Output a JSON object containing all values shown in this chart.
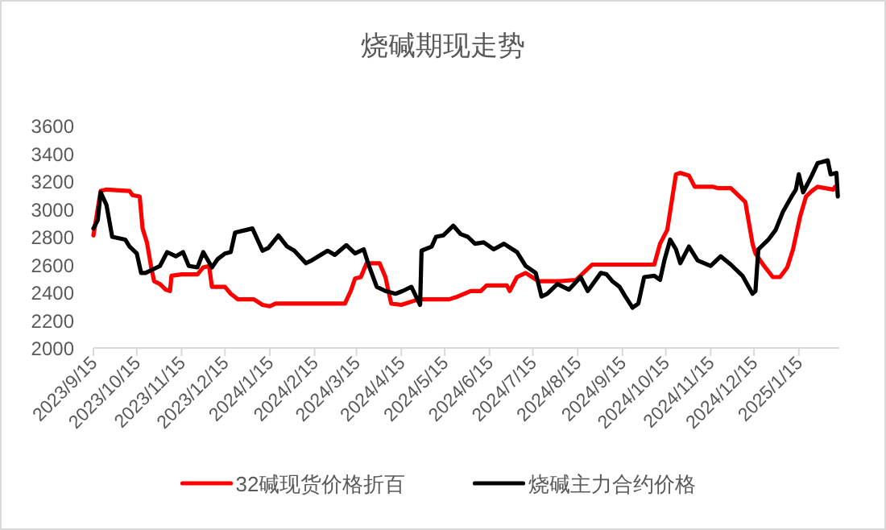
{
  "chart_data": {
    "type": "line",
    "title": "烧碱期现走势",
    "legend": "bottom",
    "xlim": [
      "2023-09-15",
      "2025-02-12"
    ],
    "xticks": [
      {
        "value": "2023-09-15",
        "label": "2023/9/15"
      },
      {
        "value": "2023-10-15",
        "label": "2023/10/15"
      },
      {
        "value": "2023-11-15",
        "label": "2023/11/15"
      },
      {
        "value": "2023-12-15",
        "label": "2023/12/15"
      },
      {
        "value": "2024-01-15",
        "label": "2024/1/15"
      },
      {
        "value": "2024-02-15",
        "label": "2024/2/15"
      },
      {
        "value": "2024-03-15",
        "label": "2024/3/15"
      },
      {
        "value": "2024-04-15",
        "label": "2024/4/15"
      },
      {
        "value": "2024-05-15",
        "label": "2024/5/15"
      },
      {
        "value": "2024-06-15",
        "label": "2024/6/15"
      },
      {
        "value": "2024-07-15",
        "label": "2024/7/15"
      },
      {
        "value": "2024-08-15",
        "label": "2024/8/15"
      },
      {
        "value": "2024-09-15",
        "label": "2024/9/15"
      },
      {
        "value": "2024-10-15",
        "label": "2024/10/15"
      },
      {
        "value": "2024-11-15",
        "label": "2024/11/15"
      },
      {
        "value": "2024-12-15",
        "label": "2024/12/15"
      },
      {
        "value": "2025-01-15",
        "label": "2025/1/15"
      }
    ],
    "ylim": [
      2000,
      3600
    ],
    "yticks": [
      2000,
      2200,
      2400,
      2600,
      2800,
      3000,
      3200,
      3400,
      3600
    ],
    "series": [
      {
        "name": "32碱现货价格折百",
        "color": "#ff0000",
        "x": [
          "2023-09-15",
          "2023-09-20",
          "2023-09-24",
          "2023-10-10",
          "2023-10-12",
          "2023-10-17",
          "2023-10-19",
          "2023-10-22",
          "2023-10-25",
          "2023-10-27",
          "2023-10-31",
          "2023-11-04",
          "2023-11-07",
          "2023-11-08",
          "2023-11-15",
          "2023-11-26",
          "2023-11-30",
          "2023-12-04",
          "2023-12-06",
          "2023-12-15",
          "2023-12-19",
          "2023-12-24",
          "2024-01-04",
          "2024-01-10",
          "2024-01-15",
          "2024-01-19",
          "2024-02-20",
          "2024-03-07",
          "2024-03-11",
          "2024-03-14",
          "2024-03-18",
          "2024-03-22",
          "2024-03-31",
          "2024-04-04",
          "2024-04-08",
          "2024-04-15",
          "2024-04-27",
          "2024-05-18",
          "2024-05-24",
          "2024-06-02",
          "2024-06-09",
          "2024-06-13",
          "2024-06-27",
          "2024-06-29",
          "2024-07-04",
          "2024-07-10",
          "2024-07-19",
          "2024-08-02",
          "2024-08-14",
          "2024-08-25",
          "2024-09-08",
          "2024-10-07",
          "2024-10-11",
          "2024-10-16",
          "2024-10-22",
          "2024-10-25",
          "2024-10-31",
          "2024-11-04",
          "2024-11-17",
          "2024-11-20",
          "2024-11-29",
          "2024-12-05",
          "2024-12-09",
          "2024-12-14",
          "2024-12-16",
          "2024-12-22",
          "2024-12-28",
          "2025-01-02",
          "2025-01-07",
          "2025-01-11",
          "2025-01-16",
          "2025-01-20",
          "2025-01-24",
          "2025-01-28",
          "2025-02-08",
          "2025-02-09"
        ],
        "values": [
          2810,
          3130,
          3140,
          3130,
          3100,
          3090,
          2860,
          2760,
          2580,
          2480,
          2460,
          2420,
          2410,
          2520,
          2530,
          2530,
          2580,
          2590,
          2440,
          2440,
          2390,
          2350,
          2350,
          2310,
          2300,
          2320,
          2320,
          2320,
          2410,
          2500,
          2510,
          2610,
          2610,
          2510,
          2320,
          2310,
          2350,
          2350,
          2370,
          2410,
          2410,
          2450,
          2450,
          2410,
          2510,
          2540,
          2480,
          2480,
          2490,
          2600,
          2600,
          2600,
          2750,
          2850,
          3250,
          3260,
          3240,
          3160,
          3160,
          3150,
          3150,
          3090,
          3050,
          2750,
          2680,
          2590,
          2510,
          2510,
          2580,
          2710,
          2950,
          3090,
          3130,
          3160,
          3140,
          3160
        ]
      },
      {
        "name": "烧碱主力合约价格",
        "color": "#000000",
        "x": [
          "2023-09-15",
          "2023-09-18",
          "2023-09-20",
          "2023-09-24",
          "2023-09-28",
          "2023-10-07",
          "2023-10-10",
          "2023-10-15",
          "2023-10-18",
          "2023-10-21",
          "2023-10-31",
          "2023-11-05",
          "2023-11-11",
          "2023-11-16",
          "2023-11-20",
          "2023-11-26",
          "2023-11-30",
          "2023-12-06",
          "2023-12-10",
          "2023-12-15",
          "2023-12-19",
          "2023-12-22",
          "2023-12-30",
          "2024-01-03",
          "2024-01-10",
          "2024-01-14",
          "2024-01-21",
          "2024-01-27",
          "2024-02-01",
          "2024-02-09",
          "2024-02-13",
          "2024-02-24",
          "2024-02-29",
          "2024-03-08",
          "2024-03-14",
          "2024-03-20",
          "2024-03-23",
          "2024-03-29",
          "2024-04-04",
          "2024-04-11",
          "2024-04-16",
          "2024-04-22",
          "2024-04-28",
          "2024-04-29",
          "2024-05-06",
          "2024-05-09",
          "2024-05-14",
          "2024-05-21",
          "2024-05-26",
          "2024-05-31",
          "2024-06-05",
          "2024-06-11",
          "2024-06-18",
          "2024-06-25",
          "2024-07-04",
          "2024-07-10",
          "2024-07-17",
          "2024-07-21",
          "2024-07-25",
          "2024-08-01",
          "2024-08-09",
          "2024-08-17",
          "2024-08-22",
          "2024-08-31",
          "2024-09-04",
          "2024-09-08",
          "2024-09-13",
          "2024-09-17",
          "2024-09-22",
          "2024-09-26",
          "2024-09-30",
          "2024-10-07",
          "2024-10-11",
          "2024-10-14",
          "2024-10-18",
          "2024-10-22",
          "2024-10-25",
          "2024-10-31",
          "2024-11-06",
          "2024-11-15",
          "2024-11-22",
          "2024-11-29",
          "2024-12-07",
          "2024-12-14",
          "2024-12-16",
          "2024-12-18",
          "2024-12-25",
          "2024-12-30",
          "2025-01-04",
          "2025-01-10",
          "2025-01-13",
          "2025-01-15",
          "2025-01-18",
          "2025-01-23",
          "2025-01-28",
          "2025-02-04",
          "2025-02-06",
          "2025-02-10",
          "2025-02-11"
        ],
        "values": [
          2860,
          2920,
          3120,
          3030,
          2800,
          2780,
          2730,
          2680,
          2540,
          2540,
          2590,
          2690,
          2660,
          2690,
          2590,
          2580,
          2690,
          2580,
          2640,
          2680,
          2690,
          2830,
          2850,
          2860,
          2700,
          2720,
          2810,
          2730,
          2700,
          2610,
          2630,
          2700,
          2670,
          2740,
          2680,
          2710,
          2610,
          2440,
          2410,
          2390,
          2410,
          2440,
          2310,
          2700,
          2730,
          2800,
          2810,
          2880,
          2820,
          2800,
          2750,
          2760,
          2710,
          2750,
          2690,
          2590,
          2540,
          2370,
          2390,
          2460,
          2420,
          2510,
          2410,
          2540,
          2530,
          2480,
          2440,
          2370,
          2290,
          2320,
          2510,
          2520,
          2490,
          2630,
          2780,
          2710,
          2610,
          2730,
          2630,
          2590,
          2660,
          2600,
          2520,
          2390,
          2410,
          2710,
          2780,
          2850,
          2980,
          3090,
          3140,
          3250,
          3120,
          3220,
          3330,
          3350,
          3250,
          3260,
          3090
        ]
      }
    ]
  }
}
